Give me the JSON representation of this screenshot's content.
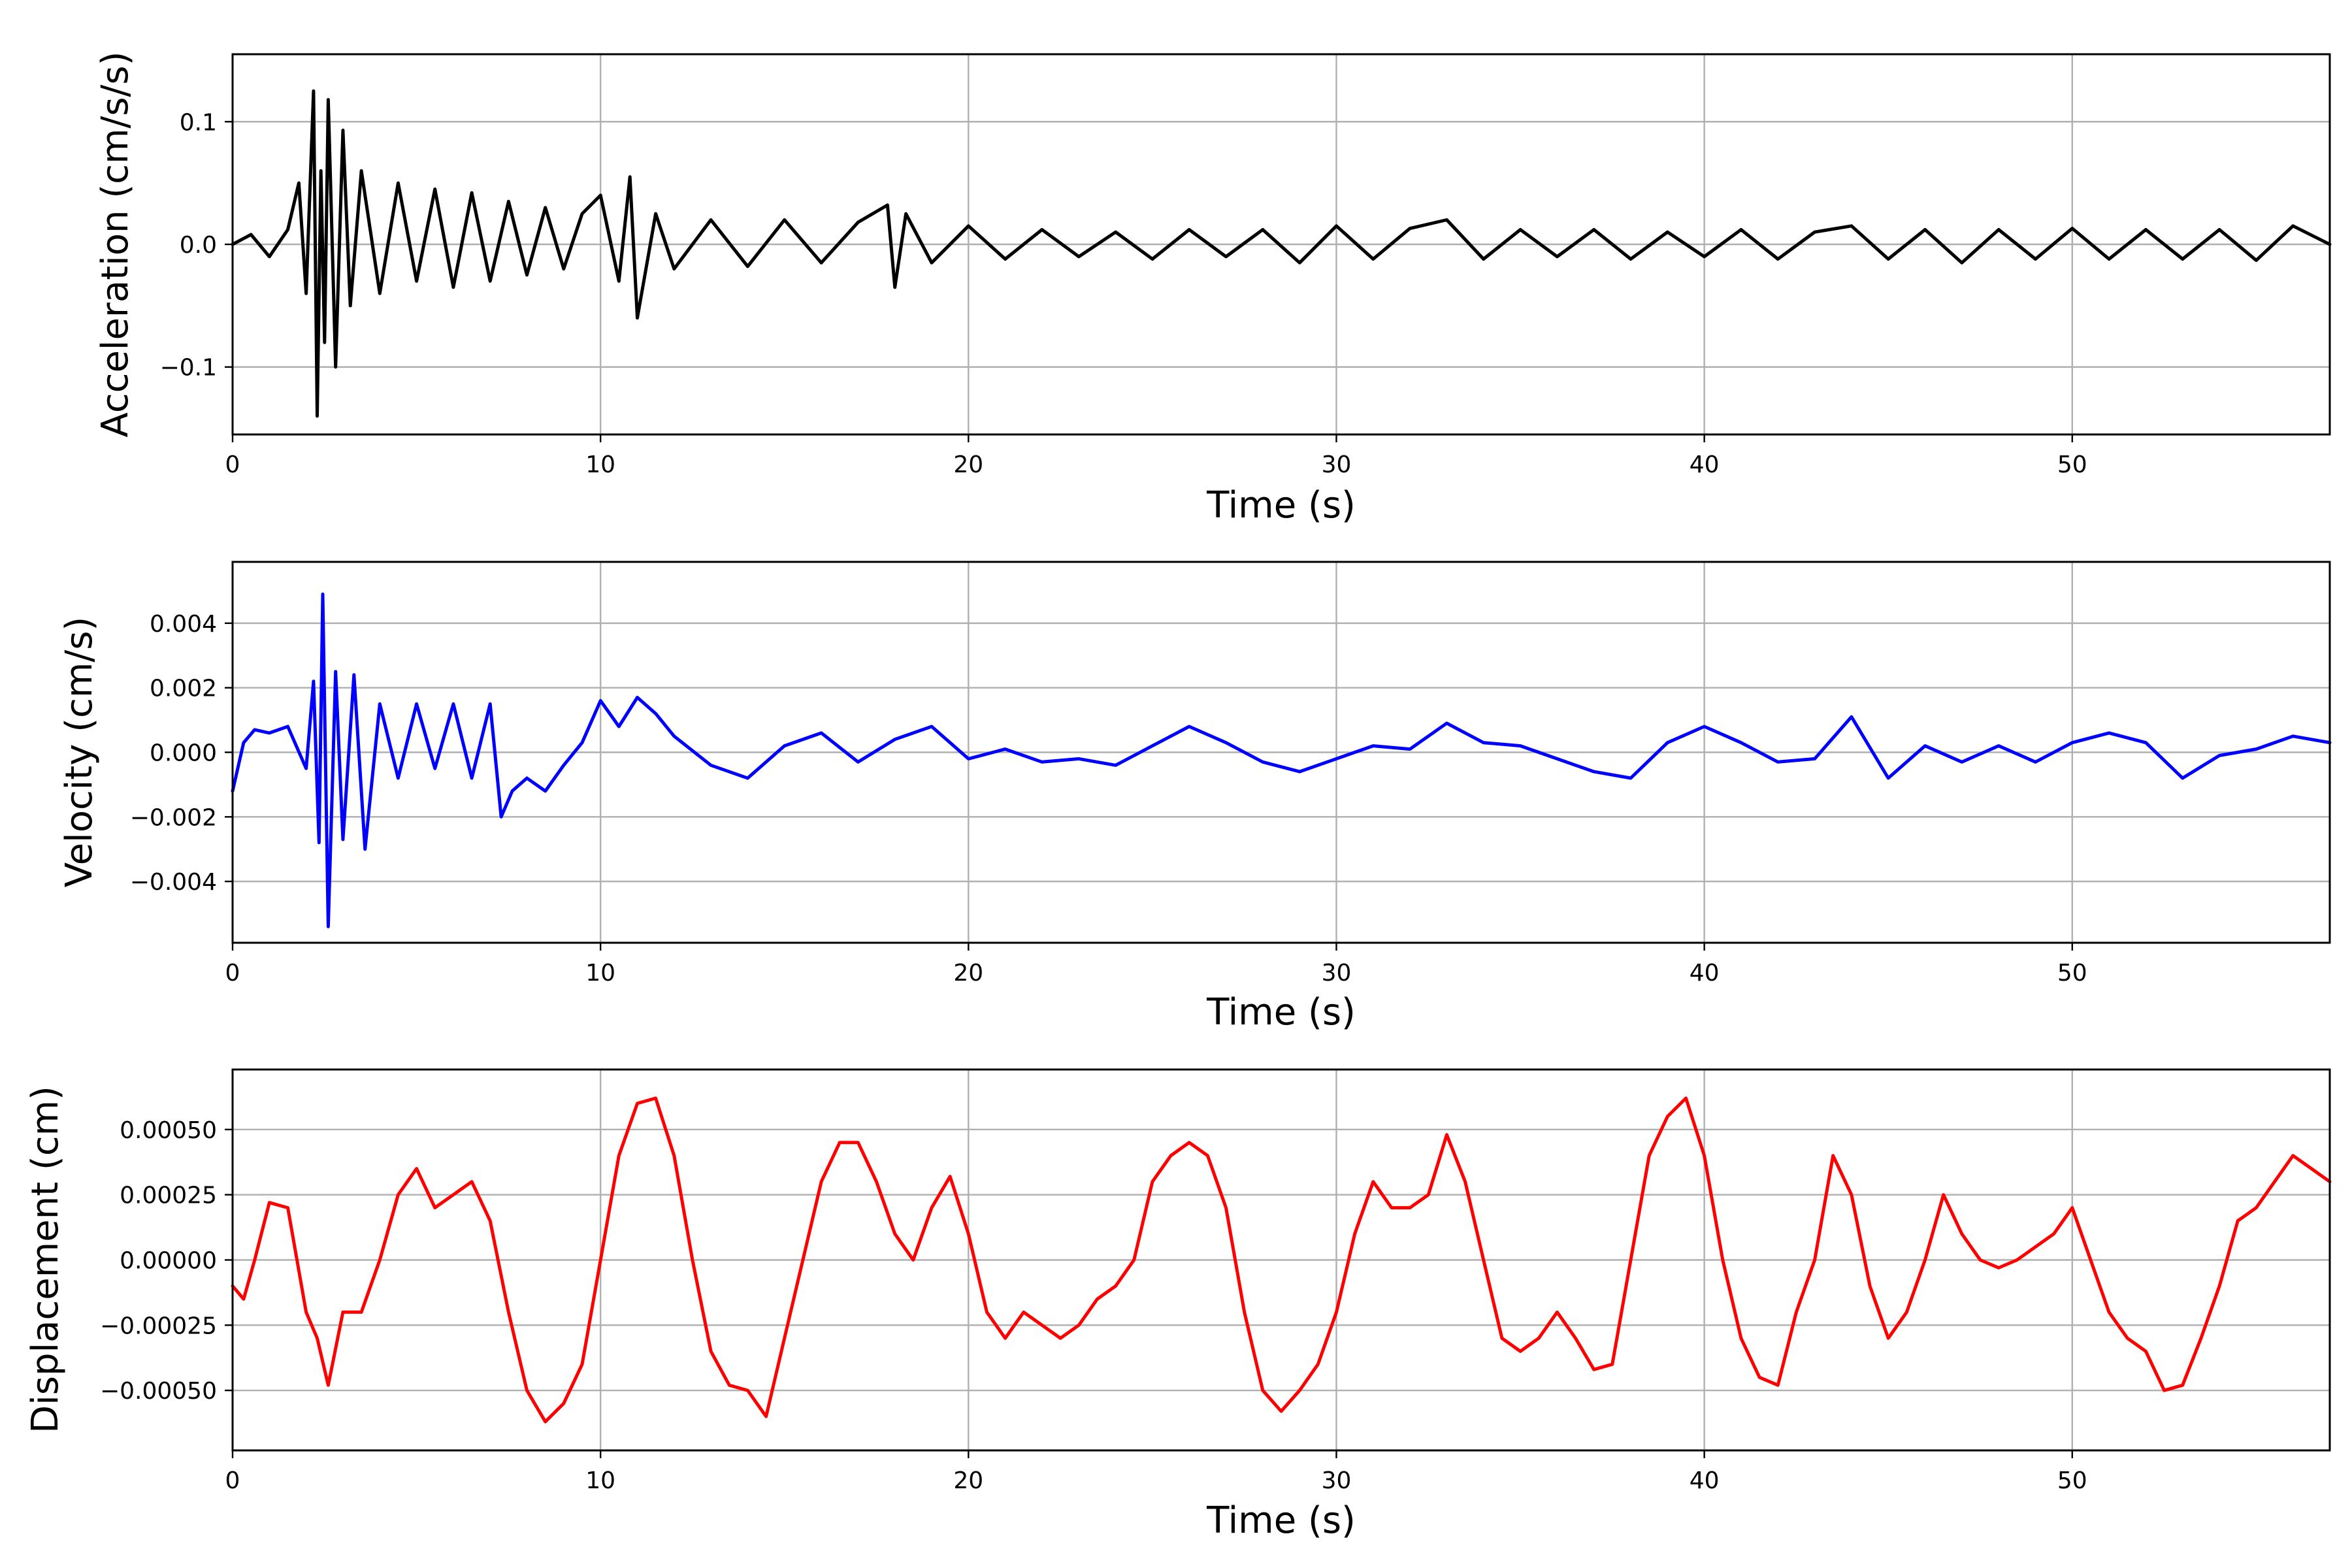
{
  "chart_data": [
    {
      "type": "line",
      "xlabel": "Time (s)",
      "ylabel": "Acceleration (cm/s/s)",
      "xlim": [
        0,
        57
      ],
      "ylim": [
        -0.155,
        0.155
      ],
      "xticks": [
        0,
        10,
        20,
        30,
        40,
        50
      ],
      "yticks": [
        -0.1,
        0.0,
        0.1
      ],
      "ytick_labels": [
        "−0.1",
        "0.0",
        "0.1"
      ],
      "grid": true,
      "series": [
        {
          "color": "#000000",
          "x": [
            0,
            0.5,
            1.0,
            1.5,
            1.8,
            2.0,
            2.2,
            2.3,
            2.4,
            2.5,
            2.6,
            2.8,
            3.0,
            3.2,
            3.5,
            4.0,
            4.5,
            5.0,
            5.5,
            6.0,
            6.5,
            7.0,
            7.5,
            8.0,
            8.5,
            9.0,
            9.5,
            10.0,
            10.5,
            10.8,
            11.0,
            11.5,
            12.0,
            13.0,
            14.0,
            15.0,
            16.0,
            17.0,
            17.8,
            18.0,
            18.3,
            19.0,
            20.0,
            21.0,
            22.0,
            23.0,
            24.0,
            25.0,
            26.0,
            27.0,
            28.0,
            29.0,
            30.0,
            31.0,
            32.0,
            33.0,
            34.0,
            35.0,
            36.0,
            37.0,
            38.0,
            39.0,
            40.0,
            41.0,
            42.0,
            43.0,
            44.0,
            45.0,
            46.0,
            47.0,
            48.0,
            49.0,
            50.0,
            51.0,
            52.0,
            53.0,
            54.0,
            55.0,
            56.0,
            57.0
          ],
          "y": [
            0.0,
            0.008,
            -0.01,
            0.012,
            0.05,
            -0.04,
            0.125,
            -0.14,
            0.06,
            -0.08,
            0.118,
            -0.1,
            0.093,
            -0.05,
            0.06,
            -0.04,
            0.05,
            -0.03,
            0.045,
            -0.035,
            0.042,
            -0.03,
            0.035,
            -0.025,
            0.03,
            -0.02,
            0.025,
            0.04,
            -0.03,
            0.055,
            -0.06,
            0.025,
            -0.02,
            0.02,
            -0.018,
            0.02,
            -0.015,
            0.018,
            0.032,
            -0.035,
            0.025,
            -0.015,
            0.015,
            -0.012,
            0.012,
            -0.01,
            0.01,
            -0.012,
            0.012,
            -0.01,
            0.012,
            -0.015,
            0.015,
            -0.012,
            0.013,
            0.02,
            -0.012,
            0.012,
            -0.01,
            0.012,
            -0.012,
            0.01,
            -0.01,
            0.012,
            -0.012,
            0.01,
            0.015,
            -0.012,
            0.012,
            -0.015,
            0.012,
            -0.012,
            0.013,
            -0.012,
            0.012,
            -0.012,
            0.012,
            -0.013,
            0.015,
            0.0
          ]
        }
      ]
    },
    {
      "type": "line",
      "xlabel": "Time (s)",
      "ylabel": "Velocity (cm/s)",
      "xlim": [
        0,
        57
      ],
      "ylim": [
        -0.0059,
        0.0059
      ],
      "xticks": [
        0,
        10,
        20,
        30,
        40,
        50
      ],
      "yticks": [
        -0.004,
        -0.002,
        0.0,
        0.002,
        0.004
      ],
      "ytick_labels": [
        "−0.004",
        "−0.002",
        "0.000",
        "0.002",
        "0.004"
      ],
      "grid": true,
      "series": [
        {
          "color": "#0000ff",
          "x": [
            0,
            0.3,
            0.6,
            1.0,
            1.5,
            2.0,
            2.2,
            2.35,
            2.45,
            2.6,
            2.8,
            3.0,
            3.3,
            3.6,
            4.0,
            4.5,
            5.0,
            5.5,
            6.0,
            6.5,
            7.0,
            7.3,
            7.6,
            8.0,
            8.5,
            9.0,
            9.5,
            10.0,
            10.5,
            11.0,
            11.5,
            12.0,
            13.0,
            14.0,
            15.0,
            16.0,
            17.0,
            18.0,
            19.0,
            20.0,
            21.0,
            22.0,
            23.0,
            24.0,
            25.0,
            26.0,
            27.0,
            28.0,
            29.0,
            30.0,
            31.0,
            32.0,
            33.0,
            34.0,
            35.0,
            36.0,
            37.0,
            38.0,
            39.0,
            40.0,
            41.0,
            42.0,
            43.0,
            44.0,
            45.0,
            46.0,
            47.0,
            48.0,
            49.0,
            50.0,
            51.0,
            52.0,
            53.0,
            54.0,
            55.0,
            56.0,
            57.0
          ],
          "y": [
            -0.0012,
            0.0003,
            0.0007,
            0.0006,
            0.0008,
            -0.0005,
            0.0022,
            -0.0028,
            0.0049,
            -0.0054,
            0.0025,
            -0.0027,
            0.0024,
            -0.003,
            0.0015,
            -0.0008,
            0.0015,
            -0.0005,
            0.0015,
            -0.0008,
            0.0015,
            -0.002,
            -0.0012,
            -0.0008,
            -0.0012,
            -0.0004,
            0.0003,
            0.0016,
            0.0008,
            0.0017,
            0.0012,
            0.0005,
            -0.0004,
            -0.0008,
            0.0002,
            0.0006,
            -0.0003,
            0.0004,
            0.0008,
            -0.0002,
            0.0001,
            -0.0003,
            -0.0002,
            -0.0004,
            0.0002,
            0.0008,
            0.0003,
            -0.0003,
            -0.0006,
            -0.0002,
            0.0002,
            0.0001,
            0.0009,
            0.0003,
            0.0002,
            -0.0002,
            -0.0006,
            -0.0008,
            0.0003,
            0.0008,
            0.0003,
            -0.0003,
            -0.0002,
            0.0011,
            -0.0008,
            0.0002,
            -0.0003,
            0.0002,
            -0.0003,
            0.0003,
            0.0006,
            0.0003,
            -0.0008,
            -0.0001,
            0.0001,
            0.0005,
            0.0003
          ]
        }
      ]
    },
    {
      "type": "line",
      "xlabel": "Time (s)",
      "ylabel": "Displacement (cm)",
      "xlim": [
        0,
        57
      ],
      "ylim": [
        -0.00073,
        0.00073
      ],
      "xticks": [
        0,
        10,
        20,
        30,
        40,
        50
      ],
      "yticks": [
        -0.0005,
        -0.00025,
        0.0,
        0.00025,
        0.0005
      ],
      "ytick_labels": [
        "−0.00050",
        "−0.00025",
        "0.00000",
        "0.00025",
        "0.00050"
      ],
      "grid": true,
      "series": [
        {
          "color": "#ff0000",
          "x": [
            0,
            0.3,
            0.6,
            1.0,
            1.5,
            2.0,
            2.3,
            2.6,
            3.0,
            3.5,
            4.0,
            4.5,
            5.0,
            5.5,
            6.0,
            6.5,
            7.0,
            7.5,
            8.0,
            8.5,
            9.0,
            9.5,
            10.0,
            10.5,
            11.0,
            11.5,
            12.0,
            12.5,
            13.0,
            13.5,
            14.0,
            14.5,
            15.0,
            15.5,
            16.0,
            16.5,
            17.0,
            17.5,
            18.0,
            18.5,
            19.0,
            19.5,
            20.0,
            20.5,
            21.0,
            21.5,
            22.0,
            22.5,
            23.0,
            23.5,
            24.0,
            24.5,
            25.0,
            25.5,
            26.0,
            26.5,
            27.0,
            27.5,
            28.0,
            28.5,
            29.0,
            29.5,
            30.0,
            30.5,
            31.0,
            31.5,
            32.0,
            32.5,
            33.0,
            33.5,
            34.0,
            34.5,
            35.0,
            35.5,
            36.0,
            36.5,
            37.0,
            37.5,
            38.0,
            38.5,
            39.0,
            39.5,
            40.0,
            40.5,
            41.0,
            41.5,
            42.0,
            42.5,
            43.0,
            43.5,
            44.0,
            44.5,
            45.0,
            45.5,
            46.0,
            46.5,
            47.0,
            47.5,
            48.0,
            48.5,
            49.0,
            49.5,
            50.0,
            50.5,
            51.0,
            51.5,
            52.0,
            52.5,
            53.0,
            53.5,
            54.0,
            54.5,
            55.0,
            55.5,
            56.0,
            56.5,
            57.0
          ],
          "y": [
            -0.0001,
            -0.00015,
            0.0,
            0.00022,
            0.0002,
            -0.0002,
            -0.0003,
            -0.00048,
            -0.0002,
            -0.0002,
            0.0,
            0.00025,
            0.00035,
            0.0002,
            0.00025,
            0.0003,
            0.00015,
            -0.0002,
            -0.0005,
            -0.00062,
            -0.00055,
            -0.0004,
            0.0,
            0.0004,
            0.0006,
            0.00062,
            0.0004,
            0.0,
            -0.00035,
            -0.00048,
            -0.0005,
            -0.0006,
            -0.0003,
            0.0,
            0.0003,
            0.00045,
            0.00045,
            0.0003,
            0.0001,
            0.0,
            0.0002,
            0.00032,
            0.0001,
            -0.0002,
            -0.0003,
            -0.0002,
            -0.00025,
            -0.0003,
            -0.00025,
            -0.00015,
            -0.0001,
            0.0,
            0.0003,
            0.0004,
            0.00045,
            0.0004,
            0.0002,
            -0.0002,
            -0.0005,
            -0.00058,
            -0.0005,
            -0.0004,
            -0.0002,
            0.0001,
            0.0003,
            0.0002,
            0.0002,
            0.00025,
            0.00048,
            0.0003,
            0.0,
            -0.0003,
            -0.00035,
            -0.0003,
            -0.0002,
            -0.0003,
            -0.00042,
            -0.0004,
            0.0,
            0.0004,
            0.00055,
            0.00062,
            0.0004,
            0.0,
            -0.0003,
            -0.00045,
            -0.00048,
            -0.0002,
            0.0,
            0.0004,
            0.00025,
            -0.0001,
            -0.0003,
            -0.0002,
            0.0,
            0.00025,
            0.0001,
            0.0,
            -3e-05,
            0.0,
            5e-05,
            0.0001,
            0.0002,
            0.0,
            -0.0002,
            -0.0003,
            -0.00035,
            -0.0005,
            -0.00048,
            -0.0003,
            -0.0001,
            0.00015,
            0.0002,
            0.0003,
            0.0004,
            0.00035,
            0.0003
          ]
        }
      ]
    }
  ]
}
